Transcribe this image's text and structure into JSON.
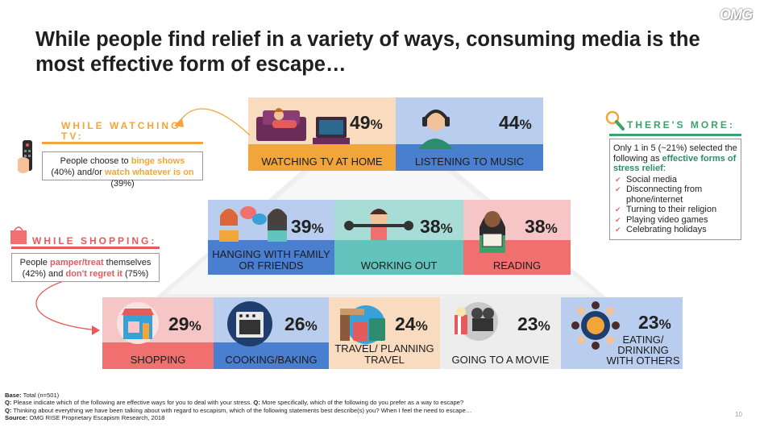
{
  "logo": "OMG",
  "title": "While people find relief in a variety of ways, consuming media is the most effective form of escape…",
  "tiles": {
    "tv": {
      "pct": "49",
      "label": "WATCHING TV AT HOME"
    },
    "music": {
      "pct": "44",
      "label": "LISTENING TO MUSIC"
    },
    "family": {
      "pct": "39",
      "label": "HANGING WITH FAMILY OR FRIENDS"
    },
    "working": {
      "pct": "38",
      "label": "WORKING OUT"
    },
    "reading": {
      "pct": "38",
      "label": "READING"
    },
    "shopping": {
      "pct": "29",
      "label": "SHOPPING"
    },
    "cooking": {
      "pct": "26",
      "label": "COOKING/BAKING"
    },
    "travel": {
      "pct": "24",
      "label": "TRAVEL/ PLANNING TRAVEL"
    },
    "movie": {
      "pct": "23",
      "label": "GOING TO A MOVIE"
    },
    "eating": {
      "pct": "23",
      "label": "EATING/ DRINKING WITH OTHERS"
    }
  },
  "pct_suffix": "%",
  "tv_callout": {
    "heading": "WHILE WATCHING TV:",
    "text_a": "People choose to ",
    "hl_a": "binge shows",
    "text_b": " (40%) and/or ",
    "hl_b": "watch whatever is on",
    "text_c": " (39%)"
  },
  "shop_callout": {
    "heading": "WHILE SHOPPING:",
    "text_a": "People ",
    "hl_a": "pamper/treat",
    "text_b": " themselves (42%) and ",
    "hl_b": "don't regret it",
    "text_c": " (75%)"
  },
  "more": {
    "heading": "THERE'S MORE:",
    "intro_a": "Only 1 in 5 (~21%) selected the following as ",
    "intro_hl": "effective forms of stress relief",
    "intro_b": ":",
    "items": [
      "Social media",
      "Disconnecting from phone/internet",
      "Turning to their religion",
      "Playing video games",
      "Celebrating holidays"
    ]
  },
  "footer": {
    "base_label": "Base:",
    "base": " Total (n=501)",
    "q1_label": "Q:",
    "q1": " Please indicate which of the following are effective ways for you to deal with your stress. ",
    "q1b_label": "Q:",
    "q1b": " More specifically, which of the following do you prefer as a way to escape?",
    "q2_label": "Q:",
    "q2": " Thinking about everything we have been talking about with regard to escapism, which of the following statements best describe(s) you? When I feel the need to escape…",
    "src_label": "Source:",
    "src": " OMG RISE Proprietary Escapism Research, 2018"
  },
  "page_number": "10",
  "colors": {
    "orange": "#f2a63a",
    "blue": "#4a7fd0",
    "teal": "#62c2bc",
    "pink": "#f07070",
    "green": "#3aa36b",
    "red": "#e55a5a"
  }
}
